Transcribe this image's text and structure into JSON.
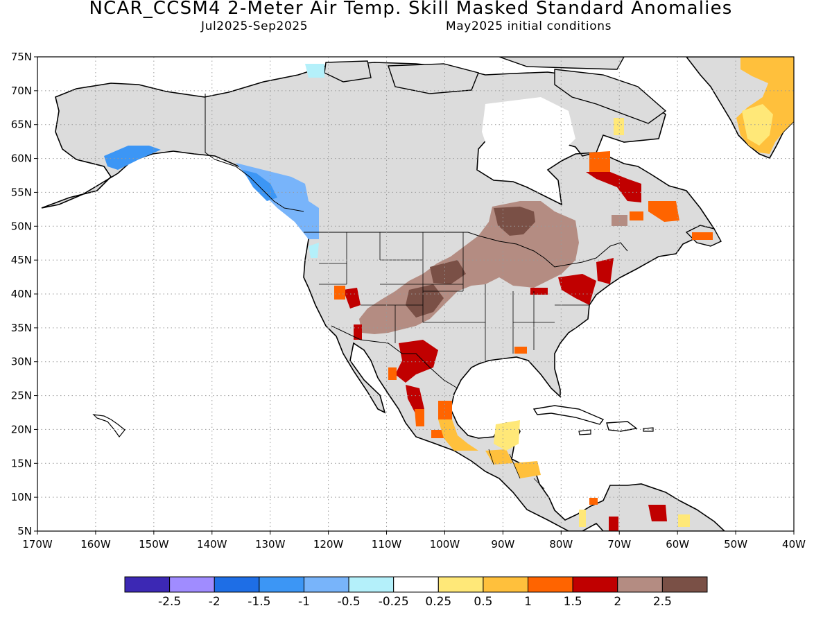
{
  "title": "NCAR_CCSM4 2-Meter Air Temp. Skill Masked Standard Anomalies",
  "forecast_period": "Jul2025-Sep2025",
  "initial_conditions": "May2025 initial conditions",
  "map": {
    "lat_labels": [
      "75N",
      "70N",
      "65N",
      "60N",
      "55N",
      "50N",
      "45N",
      "40N",
      "35N",
      "30N",
      "25N",
      "20N",
      "15N",
      "10N",
      "5N"
    ],
    "lon_labels": [
      "170W",
      "160W",
      "150W",
      "140W",
      "130W",
      "120W",
      "110W",
      "100W",
      "90W",
      "80W",
      "70W",
      "60W",
      "50W",
      "40W"
    ],
    "colors": {
      "land_no_skill": "#dcdcdc",
      "coastline": "#000000",
      "grid": "#999999"
    }
  },
  "colorbar": {
    "colors": [
      "#3c28b4",
      "#a08cff",
      "#1e6ee6",
      "#3c96f5",
      "#78b4fa",
      "#b4f0fa",
      "#ffffff",
      "#ffe878",
      "#ffc03c",
      "#ff6400",
      "#c00000",
      "#b48c82",
      "#7a5046"
    ],
    "labels": [
      "-2.5",
      "-2",
      "-1.5",
      "-1",
      "-0.5",
      "-0.25",
      "0.25",
      "0.5",
      "1",
      "1.5",
      "2",
      "2.5"
    ]
  }
}
